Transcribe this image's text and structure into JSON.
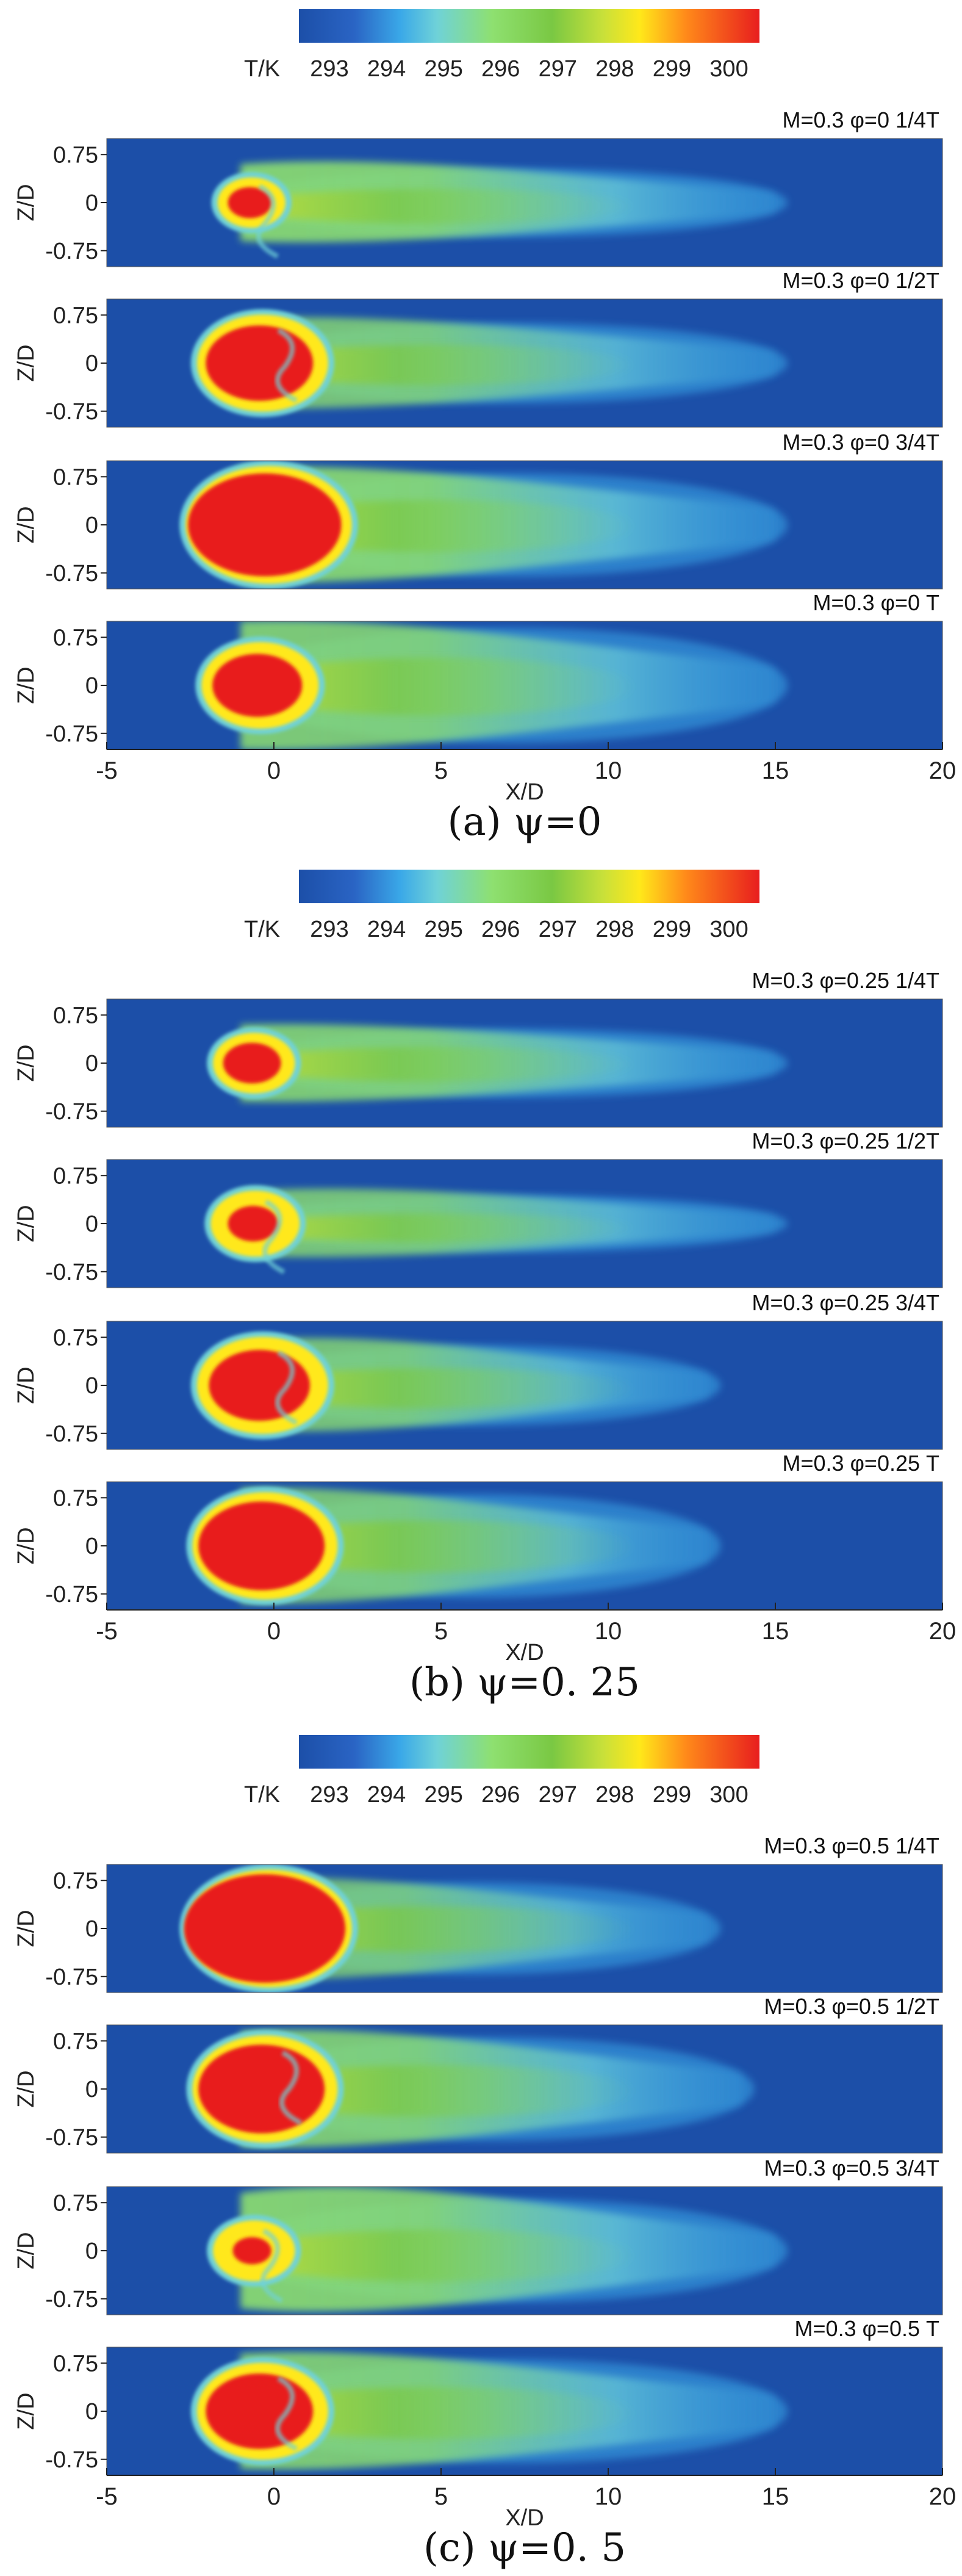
{
  "chart_data": [
    {
      "type": "heatmap",
      "title": "(a) ψ=0",
      "colorbar": {
        "label": "T/K",
        "ticks": [
          "293",
          "294",
          "295",
          "296",
          "297",
          "298",
          "299",
          "300"
        ],
        "range": [
          293,
          300
        ]
      },
      "xlabel": "X/D",
      "ylabel": "Z/D",
      "xticks": [
        "-5",
        "0",
        "5",
        "10",
        "15",
        "20"
      ],
      "yticks": [
        "0.75",
        "0",
        "-0.75"
      ],
      "xlim": [
        -5,
        20
      ],
      "ylim": [
        -1,
        1
      ],
      "panels": [
        {
          "label": "M=0.3  φ=0   1/4T",
          "head_scale": 0.45,
          "core_scale": 0.7,
          "plume_len": 20,
          "plume_width": 0.3,
          "plume_level": 0.55,
          "distortion": 0.6
        },
        {
          "label": "M=0.3  φ=0   1/2T",
          "head_scale": 0.9,
          "core_scale": 0.85,
          "plume_len": 20,
          "plume_width": 0.35,
          "plume_level": 0.45,
          "distortion": 0.3
        },
        {
          "label": "M=0.3  φ=0   3/4T",
          "head_scale": 1.15,
          "core_scale": 0.95,
          "plume_len": 20,
          "plume_width": 0.45,
          "plume_level": 0.55,
          "distortion": 0.2
        },
        {
          "label": "M=0.3  φ=0     T",
          "head_scale": 0.8,
          "core_scale": 0.8,
          "plume_len": 20,
          "plume_width": 0.5,
          "plume_level": 0.5,
          "distortion": 0.2
        }
      ]
    },
    {
      "type": "heatmap",
      "title": "(b) ψ=0. 25",
      "colorbar": {
        "label": "T/K",
        "ticks": [
          "293",
          "294",
          "295",
          "296",
          "297",
          "298",
          "299",
          "300"
        ],
        "range": [
          293,
          300
        ]
      },
      "xlabel": "X/D",
      "ylabel": "Z/D",
      "xticks": [
        "-5",
        "0",
        "5",
        "10",
        "15",
        "20"
      ],
      "yticks": [
        "0.75",
        "0",
        "-0.75"
      ],
      "xlim": [
        -5,
        20
      ],
      "ylim": [
        -1,
        1
      ],
      "panels": [
        {
          "label": "M=0.3  φ=0.25  1/4T",
          "head_scale": 0.55,
          "core_scale": 0.75,
          "plume_len": 20,
          "plume_width": 0.3,
          "plume_level": 0.5,
          "distortion": 0.2
        },
        {
          "label": "M=0.3  φ=0.25  1/2T",
          "head_scale": 0.6,
          "core_scale": 0.6,
          "plume_len": 20,
          "plume_width": 0.25,
          "plume_level": 0.45,
          "distortion": 0.7
        },
        {
          "label": "M=0.3  φ=0.25  3/4T",
          "head_scale": 0.9,
          "core_scale": 0.8,
          "plume_len": 18,
          "plume_width": 0.35,
          "plume_level": 0.45,
          "distortion": 0.5
        },
        {
          "label": "M=0.3  φ=0.25    T",
          "head_scale": 1.0,
          "core_scale": 0.9,
          "plume_len": 18,
          "plume_width": 0.45,
          "plume_level": 0.45,
          "distortion": 0.1
        }
      ]
    },
    {
      "type": "heatmap",
      "title": "(c) ψ=0. 5",
      "colorbar": {
        "label": "T/K",
        "ticks": [
          "293",
          "294",
          "295",
          "296",
          "297",
          "298",
          "299",
          "300"
        ],
        "range": [
          293,
          300
        ]
      },
      "xlabel": "X/D",
      "ylabel": "Z/D",
      "xticks": [
        "-5",
        "0",
        "5",
        "10",
        "15",
        "20"
      ],
      "yticks": [
        "0.75",
        "0",
        "-0.75"
      ],
      "xlim": [
        -5,
        20
      ],
      "ylim": [
        -1,
        1
      ],
      "panels": [
        {
          "label": "M=0.3  φ=0.5  1/4T",
          "head_scale": 1.15,
          "core_scale": 1.0,
          "plume_len": 18,
          "plume_width": 0.4,
          "plume_level": 0.4,
          "distortion": 0.1
        },
        {
          "label": "M=0.3  φ=0.5  1/2T",
          "head_scale": 1.0,
          "core_scale": 0.9,
          "plume_len": 19,
          "plume_width": 0.45,
          "plume_level": 0.5,
          "distortion": 0.3
        },
        {
          "label": "M=0.3  φ=0.5  3/4T",
          "head_scale": 0.55,
          "core_scale": 0.5,
          "plume_len": 20,
          "plume_width": 0.45,
          "plume_level": 0.55,
          "distortion": 0.8
        },
        {
          "label": "M=0.3  φ=0.5    T",
          "head_scale": 0.9,
          "core_scale": 0.85,
          "plume_len": 20,
          "plume_width": 0.45,
          "plume_level": 0.5,
          "distortion": 0.3
        }
      ]
    }
  ]
}
